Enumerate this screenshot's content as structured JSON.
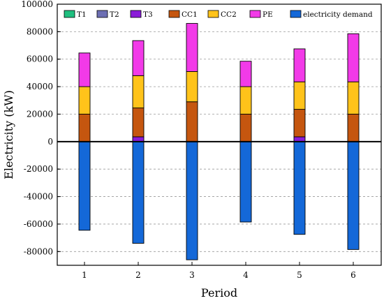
{
  "chart_data": {
    "type": "bar",
    "stacked": true,
    "xlabel": "Period",
    "ylabel": "Electricity (kW)",
    "categories": [
      "1",
      "2",
      "3",
      "4",
      "5",
      "6"
    ],
    "ylim": [
      -90000,
      100000
    ],
    "yticks": [
      -80000,
      -60000,
      -40000,
      -20000,
      0,
      20000,
      40000,
      60000,
      80000,
      100000
    ],
    "grid": true,
    "legend_position": "top",
    "series": [
      {
        "name": "T1",
        "color": "#1fbf7f",
        "values": [
          0,
          0,
          0,
          0,
          0,
          0
        ]
      },
      {
        "name": "T2",
        "color": "#6d6fb3",
        "values": [
          0,
          0,
          0,
          0,
          0,
          0
        ]
      },
      {
        "name": "T3",
        "color": "#8a1cd8",
        "values": [
          0,
          3500,
          0,
          0,
          3500,
          0
        ]
      },
      {
        "name": "CC1",
        "color": "#c5560f",
        "values": [
          20000,
          21000,
          29000,
          20000,
          20000,
          20000
        ]
      },
      {
        "name": "CC2",
        "color": "#ffc31a",
        "values": [
          20000,
          23500,
          22000,
          20000,
          20000,
          23500
        ]
      },
      {
        "name": "PE",
        "color": "#f23ae8",
        "values": [
          24500,
          25500,
          35000,
          18500,
          24000,
          35000
        ]
      },
      {
        "name": "electricity demand",
        "color": "#1468d8",
        "values": [
          -64500,
          -74000,
          -86000,
          -58500,
          -67500,
          -78500
        ]
      }
    ]
  }
}
